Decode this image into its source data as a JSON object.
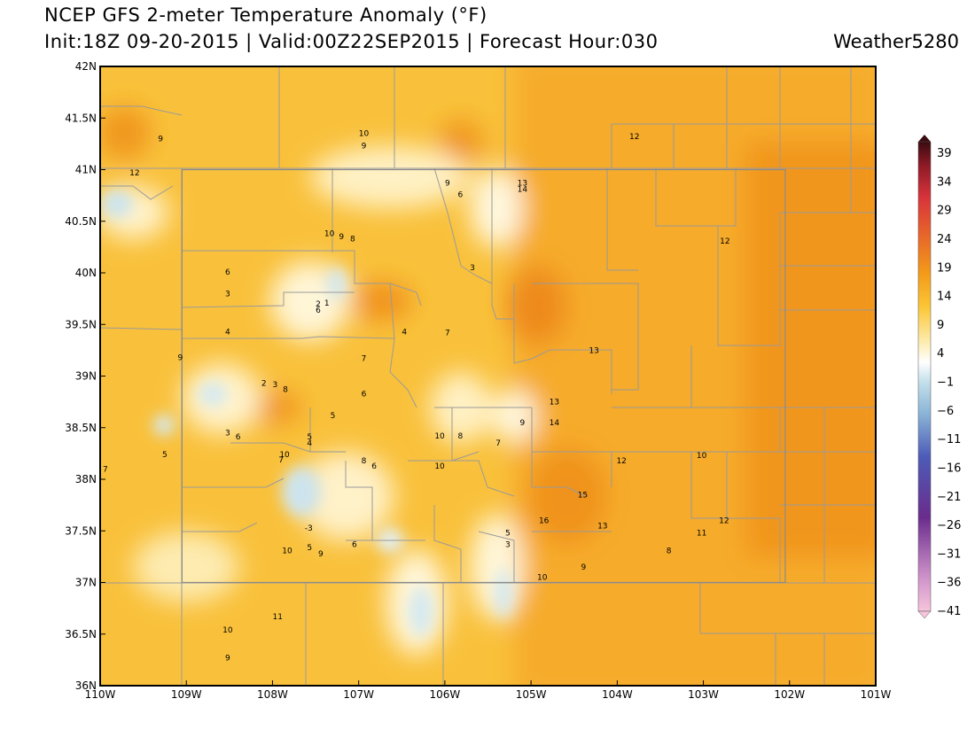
{
  "title_line1": "NCEP GFS 2-meter Temperature Anomaly (°F)",
  "title_line2": "Init:18Z 09-20-2015 | Valid:00Z22SEP2015 | Forecast Hour:030",
  "credit": "Weather5280",
  "map": {
    "lon_range": [
      -110,
      -101
    ],
    "lat_range": [
      36,
      42
    ],
    "colorado_bounds": {
      "lon": [
        -109.05,
        -102.05
      ],
      "lat": [
        37,
        41
      ]
    },
    "x_ticks": [
      {
        "lon": -110,
        "label": "110W"
      },
      {
        "lon": -109,
        "label": "109W"
      },
      {
        "lon": -108,
        "label": "108W"
      },
      {
        "lon": -107,
        "label": "107W"
      },
      {
        "lon": -106,
        "label": "106W"
      },
      {
        "lon": -105,
        "label": "105W"
      },
      {
        "lon": -104,
        "label": "104W"
      },
      {
        "lon": -103,
        "label": "103W"
      },
      {
        "lon": -102,
        "label": "102W"
      },
      {
        "lon": -101,
        "label": "101W"
      }
    ],
    "y_ticks": [
      {
        "lat": 42,
        "label": "42N"
      },
      {
        "lat": 41.5,
        "label": "41.5N"
      },
      {
        "lat": 41,
        "label": "41N"
      },
      {
        "lat": 40.5,
        "label": "40.5N"
      },
      {
        "lat": 40,
        "label": "40N"
      },
      {
        "lat": 39.5,
        "label": "39.5N"
      },
      {
        "lat": 39,
        "label": "39N"
      },
      {
        "lat": 38.5,
        "label": "38.5N"
      },
      {
        "lat": 38,
        "label": "38N"
      },
      {
        "lat": 37.5,
        "label": "37.5N"
      },
      {
        "lat": 37,
        "label": "37N"
      },
      {
        "lat": 36.5,
        "label": "36.5N"
      },
      {
        "lat": 36,
        "label": "36N"
      }
    ],
    "stations": [
      {
        "lon": -109.3,
        "lat": 41.3,
        "value": "9"
      },
      {
        "lon": -109.6,
        "lat": 40.97,
        "value": "12"
      },
      {
        "lon": -106.94,
        "lat": 41.35,
        "value": "10"
      },
      {
        "lon": -106.94,
        "lat": 41.23,
        "value": "9"
      },
      {
        "lon": -105.97,
        "lat": 40.87,
        "value": "9"
      },
      {
        "lon": -105.82,
        "lat": 40.76,
        "value": "6"
      },
      {
        "lon": -105.1,
        "lat": 40.87,
        "value": "13"
      },
      {
        "lon": -105.1,
        "lat": 40.81,
        "value": "14"
      },
      {
        "lon": -103.8,
        "lat": 41.32,
        "value": "12"
      },
      {
        "lon": -107.34,
        "lat": 40.38,
        "value": "10"
      },
      {
        "lon": -107.2,
        "lat": 40.35,
        "value": "9"
      },
      {
        "lon": -107.07,
        "lat": 40.33,
        "value": "8"
      },
      {
        "lon": -102.75,
        "lat": 40.31,
        "value": "12"
      },
      {
        "lon": -105.68,
        "lat": 40.05,
        "value": "3"
      },
      {
        "lon": -108.52,
        "lat": 40.01,
        "value": "6"
      },
      {
        "lon": -108.52,
        "lat": 39.8,
        "value": "3"
      },
      {
        "lon": -107.47,
        "lat": 39.7,
        "value": "2"
      },
      {
        "lon": -107.47,
        "lat": 39.64,
        "value": "6"
      },
      {
        "lon": -107.37,
        "lat": 39.71,
        "value": "1"
      },
      {
        "lon": -108.52,
        "lat": 39.43,
        "value": "4"
      },
      {
        "lon": -106.47,
        "lat": 39.43,
        "value": "4"
      },
      {
        "lon": -105.97,
        "lat": 39.42,
        "value": "7"
      },
      {
        "lon": -104.27,
        "lat": 39.25,
        "value": "13"
      },
      {
        "lon": -109.07,
        "lat": 39.18,
        "value": "9"
      },
      {
        "lon": -106.94,
        "lat": 39.17,
        "value": "7"
      },
      {
        "lon": -108.1,
        "lat": 38.93,
        "value": "2"
      },
      {
        "lon": -107.97,
        "lat": 38.92,
        "value": "3"
      },
      {
        "lon": -107.85,
        "lat": 38.87,
        "value": "8"
      },
      {
        "lon": -106.94,
        "lat": 38.83,
        "value": "6"
      },
      {
        "lon": -104.73,
        "lat": 38.75,
        "value": "13"
      },
      {
        "lon": -107.3,
        "lat": 38.62,
        "value": "5"
      },
      {
        "lon": -104.73,
        "lat": 38.55,
        "value": "14"
      },
      {
        "lon": -105.1,
        "lat": 38.55,
        "value": "9"
      },
      {
        "lon": -108.52,
        "lat": 38.45,
        "value": "3"
      },
      {
        "lon": -108.4,
        "lat": 38.41,
        "value": "6"
      },
      {
        "lon": -107.57,
        "lat": 38.41,
        "value": "5"
      },
      {
        "lon": -107.57,
        "lat": 38.35,
        "value": "4"
      },
      {
        "lon": -106.06,
        "lat": 38.42,
        "value": "10"
      },
      {
        "lon": -105.82,
        "lat": 38.42,
        "value": "8"
      },
      {
        "lon": -105.38,
        "lat": 38.35,
        "value": "7"
      },
      {
        "lon": -109.25,
        "lat": 38.24,
        "value": "5"
      },
      {
        "lon": -107.86,
        "lat": 38.24,
        "value": "10"
      },
      {
        "lon": -107.9,
        "lat": 38.19,
        "value": "7"
      },
      {
        "lon": -106.94,
        "lat": 38.18,
        "value": "8"
      },
      {
        "lon": -106.82,
        "lat": 38.13,
        "value": "6"
      },
      {
        "lon": -106.06,
        "lat": 38.13,
        "value": "10"
      },
      {
        "lon": -103.95,
        "lat": 38.18,
        "value": "12"
      },
      {
        "lon": -103.02,
        "lat": 38.23,
        "value": "10"
      },
      {
        "lon": -109.94,
        "lat": 38.1,
        "value": "7"
      },
      {
        "lon": -104.4,
        "lat": 37.85,
        "value": "15"
      },
      {
        "lon": -104.85,
        "lat": 37.6,
        "value": "16"
      },
      {
        "lon": -104.17,
        "lat": 37.55,
        "value": "13"
      },
      {
        "lon": -102.76,
        "lat": 37.6,
        "value": "12"
      },
      {
        "lon": -103.02,
        "lat": 37.48,
        "value": "11"
      },
      {
        "lon": -107.58,
        "lat": 37.53,
        "value": "-3"
      },
      {
        "lon": -105.27,
        "lat": 37.48,
        "value": "5"
      },
      {
        "lon": -105.27,
        "lat": 37.37,
        "value": "3"
      },
      {
        "lon": -107.05,
        "lat": 37.37,
        "value": "6"
      },
      {
        "lon": -107.57,
        "lat": 37.34,
        "value": "5"
      },
      {
        "lon": -107.44,
        "lat": 37.28,
        "value": "9"
      },
      {
        "lon": -107.83,
        "lat": 37.31,
        "value": "10"
      },
      {
        "lon": -103.4,
        "lat": 37.31,
        "value": "8"
      },
      {
        "lon": -104.39,
        "lat": 37.15,
        "value": "9"
      },
      {
        "lon": -104.87,
        "lat": 37.05,
        "value": "10"
      },
      {
        "lon": -107.94,
        "lat": 36.67,
        "value": "11"
      },
      {
        "lon": -108.52,
        "lat": 36.54,
        "value": "10"
      },
      {
        "lon": -108.52,
        "lat": 36.27,
        "value": "9"
      }
    ]
  },
  "colorbar": {
    "labels": [
      "39",
      "34",
      "29",
      "24",
      "19",
      "14",
      "9",
      "4",
      "−1",
      "−6",
      "−11",
      "−16",
      "−21",
      "−26",
      "−31",
      "−36",
      "−41"
    ],
    "colors": {
      "dark_red": "#3a0b10",
      "red": "#d8343b",
      "orange_red": "#e7662a",
      "orange": "#f39a19",
      "yellow_orange": "#fbc535",
      "pale_yellow": "#fde9a4",
      "white": "#ffffff",
      "pale_blue": "#c5e1ec",
      "blue": "#4d5cb8",
      "purple": "#6a2c8c",
      "pink": "#f0b8d6"
    }
  },
  "colors": {
    "warm_far_east": "#f19a1d",
    "warm_east": "#f6ab2c",
    "warm_mid": "#f9c13b",
    "cool_pale": "#fff3c9",
    "cool_blue": "#cde4ee",
    "border": "#999999",
    "frame": "#000000"
  }
}
